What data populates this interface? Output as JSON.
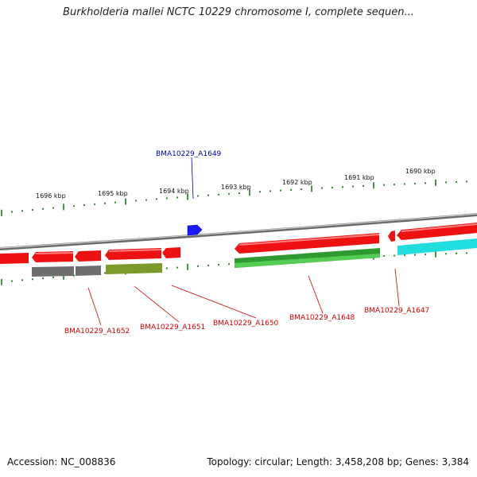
{
  "title": "Burkholderia mallei NCTC 10229 chromosome I, complete sequen...",
  "footer": {
    "accession": "Accession: NC_008836",
    "summary": "Topology: circular; Length: 3,458,208 bp; Genes: 3,384"
  },
  "ruler": {
    "labels": [
      "1696 kbp",
      "1695 kbp",
      "1694 kbp",
      "1693 kbp",
      "1692 kbp",
      "1691 kbp",
      "1690 kbp"
    ]
  },
  "colors": {
    "backbone": "#8c8c8c",
    "gene_red": "#ee1111",
    "gene_blue": "#1a1aff",
    "gene_gray": "#6e6e6e",
    "gene_olive": "#7a9a2a",
    "gene_green": "#2f9a2f",
    "gene_cyan": "#22dddd",
    "tick": "#1a7a1a",
    "label_red": "#cc0000",
    "label_blue": "#0000aa"
  },
  "gene_labels": {
    "a1649": "BMA10229_A1649",
    "a1652": "BMA10229_A1652",
    "a1651": "BMA10229_A1651",
    "a1650": "BMA10229_A1650",
    "a1648": "BMA10229_A1648",
    "a1647": "BMA10229_A1647"
  }
}
